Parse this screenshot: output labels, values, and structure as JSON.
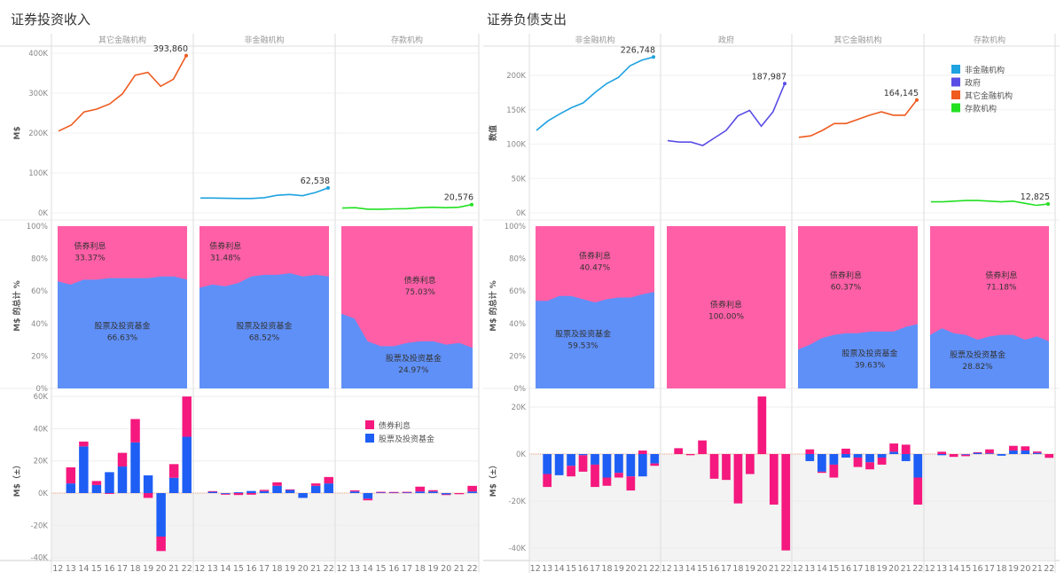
{
  "chart_data": [
    {
      "dashboard_title": "证券投资收入",
      "charts": {
        "line": {
          "type": "line",
          "ylabel": "M$",
          "ylim": [
            0,
            400000
          ],
          "yticks": [
            "0K",
            "100K",
            "200K",
            "300K",
            "400K"
          ],
          "x": [
            "12",
            "13",
            "14",
            "15",
            "16",
            "17",
            "18",
            "19",
            "20",
            "21",
            "22"
          ],
          "facets": [
            {
              "name": "其它金融机构",
              "color": "#ef5a1f",
              "values": [
                205000,
                220000,
                253000,
                260000,
                273000,
                298000,
                345000,
                352000,
                317000,
                335000,
                393860
              ],
              "end_label": "393,860"
            },
            {
              "name": "非金融机构",
              "color": "#1ea2e0",
              "values": [
                37000,
                37000,
                36500,
                36000,
                36000,
                38000,
                44000,
                46000,
                43000,
                51000,
                62538
              ],
              "end_label": "62,538"
            },
            {
              "name": "存款机构",
              "color": "#22e022",
              "values": [
                12000,
                13000,
                9000,
                9000,
                10000,
                10500,
                13000,
                14000,
                13000,
                14000,
                20576
              ],
              "end_label": "20,576"
            }
          ]
        },
        "share": {
          "type": "area",
          "stacking": "100%",
          "ylabel": "M$ 的总计 %",
          "yticks": [
            "0%",
            "20%",
            "40%",
            "60%",
            "80%",
            "100%"
          ],
          "series_names": {
            "bond": "债券利息",
            "stock": "股票及投资基金"
          },
          "colors": {
            "bond": "#ff5fa7",
            "stock": "#5f90f8"
          },
          "facets": [
            {
              "stock_pct": [
                66,
                64,
                67,
                67,
                68,
                68,
                68,
                68,
                69,
                69,
                67
              ],
              "bond_label": "33.37%",
              "stock_label": "66.63%"
            },
            {
              "stock_pct": [
                62,
                64,
                63,
                65,
                69,
                70,
                70,
                71,
                69,
                70,
                69
              ],
              "bond_label": "31.48%",
              "stock_label": "68.52%"
            },
            {
              "stock_pct": [
                46,
                43,
                29,
                26,
                26,
                28,
                29,
                29,
                27,
                28,
                25
              ],
              "bond_label": "75.03%",
              "stock_label": "24.97%"
            }
          ]
        },
        "change": {
          "type": "bar",
          "stacking": "stacked",
          "ylabel": "M$（±）",
          "ylim": [
            -40000,
            60000
          ],
          "yticks": [
            "-40K",
            "-20K",
            "0K",
            "20K",
            "40K",
            "60K"
          ],
          "x": [
            "12",
            "13",
            "14",
            "15",
            "16",
            "17",
            "18",
            "19",
            "20",
            "21",
            "22"
          ],
          "legend": [
            {
              "name": "债券利息",
              "color": "#f5187e"
            },
            {
              "name": "股票及投资基金",
              "color": "#1e5ef5"
            }
          ],
          "facets": [
            {
              "stock": [
                0,
                6000,
                29000,
                5000,
                13000,
                16500,
                31500,
                11000,
                -27000,
                9500,
                35000
              ],
              "bond": [
                0,
                10000,
                3000,
                2500,
                -500,
                8500,
                14500,
                -3000,
                -9000,
                8500,
                25000
              ]
            },
            {
              "stock": [
                0,
                1000,
                -500,
                500,
                1300,
                1200,
                4500,
                2000,
                -3000,
                4500,
                6000
              ],
              "bond": [
                0,
                200,
                -500,
                -1200,
                -1000,
                800,
                2200,
                300,
                0,
                1500,
                4000
              ]
            },
            {
              "stock": [
                0,
                1000,
                -3500,
                500,
                500,
                500,
                1000,
                1000,
                -800,
                0,
                1000
              ],
              "bond": [
                0,
                700,
                -1000,
                300,
                200,
                300,
                3000,
                800,
                -300,
                -700,
                3500
              ]
            }
          ]
        }
      }
    },
    {
      "dashboard_title": "证券负债支出",
      "charts": {
        "line": {
          "type": "line",
          "ylabel": "数值",
          "ylim": [
            0,
            226748
          ],
          "yticks": [
            "0K",
            "50K",
            "100K",
            "150K",
            "200K"
          ],
          "x": [
            "12",
            "13",
            "14",
            "15",
            "16",
            "17",
            "18",
            "19",
            "20",
            "21",
            "22"
          ],
          "legend": [
            {
              "name": "非金融机构",
              "color": "#1ea2e0"
            },
            {
              "name": "政府",
              "color": "#5a4de6"
            },
            {
              "name": "其它金融机构",
              "color": "#ef5a1f"
            },
            {
              "name": "存款机构",
              "color": "#22e022"
            }
          ],
          "facets": [
            {
              "name": "非金融机构",
              "color": "#1ea2e0",
              "values": [
                120000,
                134000,
                144000,
                153000,
                160000,
                175000,
                188000,
                197000,
                214000,
                222000,
                226748
              ],
              "end_label": "226,748"
            },
            {
              "name": "政府",
              "color": "#5a4de6",
              "values": [
                105000,
                103000,
                103000,
                98000,
                109000,
                120000,
                141000,
                149000,
                126000,
                147000,
                187987
              ],
              "end_label": "187,987"
            },
            {
              "name": "其它金融机构",
              "color": "#ef5a1f",
              "values": [
                110000,
                112000,
                120000,
                130000,
                130000,
                136000,
                142000,
                147000,
                142000,
                142000,
                164145
              ],
              "end_label": "164,145"
            },
            {
              "name": "存款机构",
              "color": "#22e022",
              "values": [
                16000,
                16000,
                17000,
                18000,
                18000,
                17000,
                16000,
                17000,
                14000,
                11000,
                12825
              ],
              "end_label": "12,825"
            }
          ]
        },
        "share": {
          "type": "area",
          "stacking": "100%",
          "ylabel": "M$ 的总计 %",
          "yticks": [
            "0%",
            "20%",
            "40%",
            "60%",
            "80%",
            "100%"
          ],
          "series_names": {
            "bond": "债券利息",
            "stock": "股票及投资基金"
          },
          "colors": {
            "bond": "#ff5fa7",
            "stock": "#5f90f8"
          },
          "facets": [
            {
              "stock_pct": [
                54,
                54,
                57,
                57,
                55,
                53,
                55,
                56,
                56,
                58,
                59.5
              ],
              "bond_label": "40.47%",
              "stock_label": "59.53%"
            },
            {
              "stock_pct": [
                0,
                0,
                0,
                0,
                0,
                0,
                0,
                0,
                0,
                0,
                0
              ],
              "bond_label": "100.00%"
            },
            {
              "stock_pct": [
                24,
                27,
                31,
                33,
                34,
                34,
                35,
                35,
                35,
                38,
                39.6
              ],
              "bond_label": "60.37%",
              "stock_label": "39.63%"
            },
            {
              "stock_pct": [
                33,
                37,
                34,
                33,
                30,
                32,
                33,
                33,
                30,
                32,
                29
              ],
              "bond_label": "71.18%",
              "stock_label": "28.82%"
            }
          ]
        },
        "change": {
          "type": "bar",
          "stacking": "stacked",
          "ylabel": "M$（±）",
          "ylim": [
            -40000,
            20000
          ],
          "yticks": [
            "-40K",
            "-20K",
            "0K",
            "20K"
          ],
          "x": [
            "12",
            "13",
            "14",
            "15",
            "16",
            "17",
            "18",
            "19",
            "20",
            "21",
            "22"
          ],
          "facets": [
            {
              "stock": [
                0,
                -8500,
                -9000,
                -5000,
                -500,
                -4500,
                -10000,
                -8000,
                -9500,
                -9500,
                -4000
              ],
              "bond": [
                0,
                -5500,
                0,
                -4500,
                -7000,
                -9500,
                -3500,
                -2000,
                -6000,
                1500,
                -1000
              ]
            },
            {
              "stock": [
                0,
                0,
                0,
                0,
                0,
                0,
                0,
                0,
                0,
                0,
                0
              ],
              "bond": [
                0,
                2500,
                -500,
                5800,
                -10500,
                -11000,
                -21000,
                -8500,
                24500,
                -21500,
                -41000
              ]
            },
            {
              "stock": [
                0,
                -3000,
                -7500,
                -4500,
                -1500,
                -1500,
                -3500,
                -1500,
                1000,
                -3000,
                -10000
              ],
              "bond": [
                0,
                2000,
                -500,
                -5500,
                2300,
                -4000,
                -3000,
                -3000,
                3500,
                4000,
                -11500
              ]
            },
            {
              "stock": [
                0,
                -500,
                0,
                -300,
                700,
                300,
                -700,
                1500,
                1500,
                500,
                0
              ],
              "bond": [
                0,
                1000,
                -1200,
                -600,
                100,
                1700,
                0,
                2000,
                1800,
                600,
                -1600
              ]
            }
          ]
        }
      }
    }
  ]
}
